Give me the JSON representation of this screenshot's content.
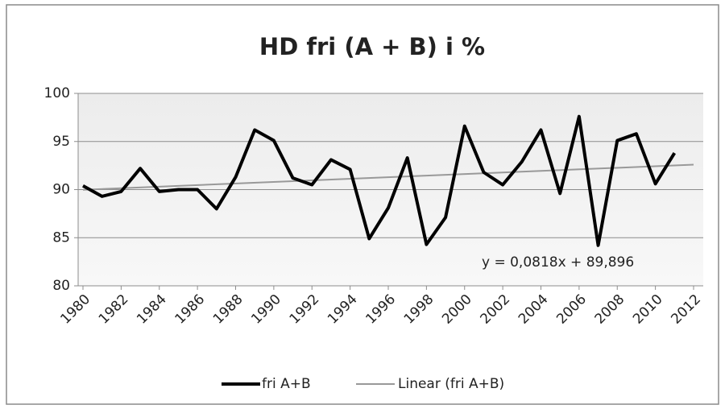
{
  "chart_data": {
    "type": "line",
    "title": "HD fri  (A + B)  i %",
    "x": [
      1980,
      1981,
      1982,
      1983,
      1984,
      1985,
      1986,
      1987,
      1988,
      1989,
      1990,
      1991,
      1992,
      1993,
      1994,
      1995,
      1996,
      1997,
      1998,
      1999,
      2000,
      2001,
      2002,
      2003,
      2004,
      2005,
      2006,
      2007,
      2008,
      2009,
      2010,
      2011
    ],
    "series": [
      {
        "name": "fri A+B",
        "color": "#000000",
        "values": [
          90.4,
          89.3,
          89.8,
          92.2,
          89.8,
          90.0,
          90.0,
          88.0,
          91.3,
          96.2,
          95.1,
          91.2,
          90.5,
          93.1,
          92.1,
          84.9,
          88.1,
          93.3,
          84.3,
          87.1,
          96.6,
          91.8,
          90.5,
          92.9,
          96.2,
          89.6,
          97.6,
          84.2,
          95.1,
          95.8,
          90.6,
          93.8
        ]
      }
    ],
    "trendline": {
      "name": "Linear (fri A+B)",
      "color": "#999999",
      "slope": 0.0818,
      "intercept": 89.896,
      "label": "y = 0,0818x + 89,896"
    },
    "xlim": [
      1980,
      2012
    ],
    "xticks": [
      1980,
      1982,
      1984,
      1986,
      1988,
      1990,
      1992,
      1994,
      1996,
      1998,
      2000,
      2002,
      2004,
      2006,
      2008,
      2010,
      2012
    ],
    "ylim": [
      80,
      100
    ],
    "yticks": [
      80,
      85,
      90,
      95,
      100
    ],
    "grid": true
  }
}
